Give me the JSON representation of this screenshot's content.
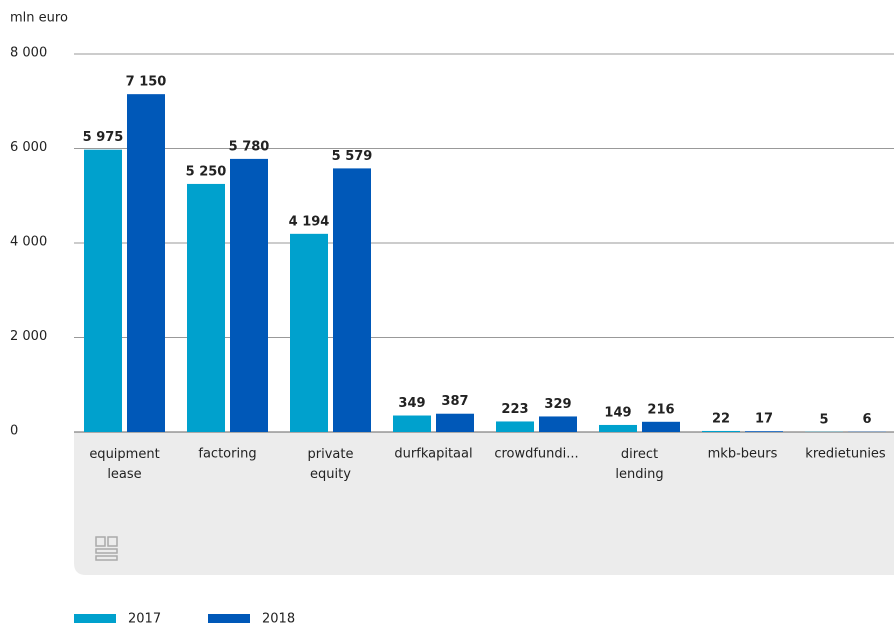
{
  "chart_data": {
    "type": "bar",
    "y_axis_label": "mln euro",
    "categories": [
      "equipment lease",
      "factoring",
      "private equity",
      "durfkapitaal",
      "crowdfundi...",
      "direct lending",
      "mkb-beurs",
      "kredietunies"
    ],
    "series": [
      {
        "name": "2017",
        "color": "#00a1cd",
        "values": [
          5975,
          5250,
          4194,
          349,
          223,
          149,
          22,
          5
        ],
        "value_labels": [
          "5 975",
          "5 250",
          "4 194",
          "349",
          "223",
          "149",
          "22",
          "5"
        ]
      },
      {
        "name": "2018",
        "color": "#0058b8",
        "values": [
          7150,
          5780,
          5579,
          387,
          329,
          216,
          17,
          6
        ],
        "value_labels": [
          "7 150",
          "5 780",
          "5 579",
          "387",
          "329",
          "216",
          "17",
          "6"
        ]
      }
    ],
    "ylim": [
      0,
      8000
    ],
    "yticks": [
      {
        "value": 0,
        "label": "0"
      },
      {
        "value": 2000,
        "label": "2 000"
      },
      {
        "value": 4000,
        "label": "4 000"
      },
      {
        "value": 6000,
        "label": "6 000"
      },
      {
        "value": 8000,
        "label": "8 000"
      }
    ],
    "grid": true,
    "legend": "bottom"
  }
}
